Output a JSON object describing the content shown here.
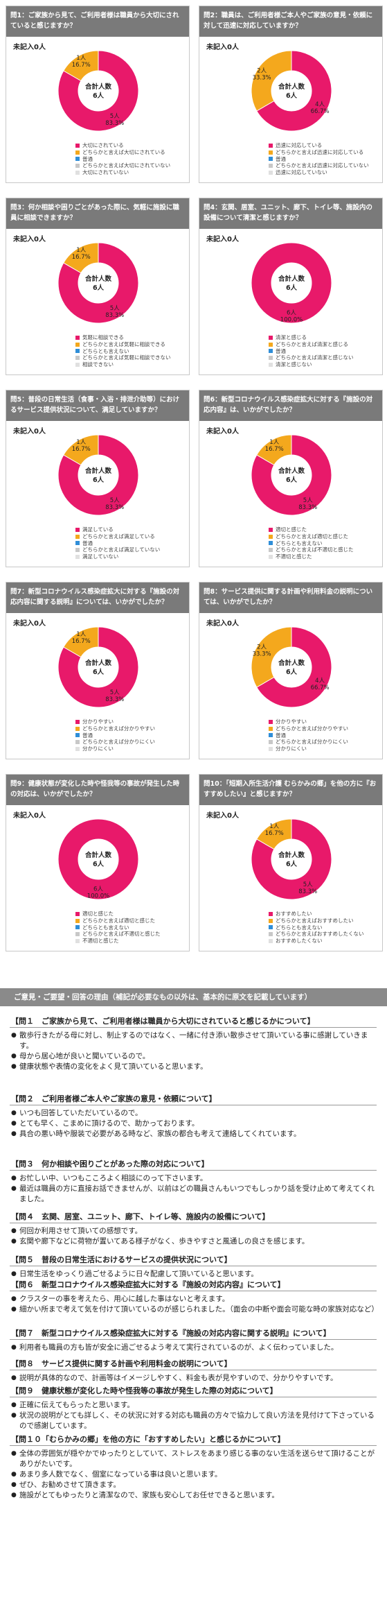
{
  "chart_data": [
    {
      "type": "pie",
      "title": "問1：ご家族から見て、ご利用者様は職員から大切にされていると感じますか？",
      "unrecorded": "未記入0人",
      "center_label": "合計人数",
      "total": "6人",
      "categories": [
        "大切にされている",
        "どちらかと言えば大切にされている",
        "普通",
        "どちらかと言えば大切にされていない",
        "大切にされていない"
      ],
      "values": [
        5,
        1,
        0,
        0,
        0
      ],
      "slice_labels": [
        [
          "5人",
          "83.3%"
        ],
        [
          "1人",
          "16.7%"
        ],
        null,
        null,
        null
      ]
    },
    {
      "type": "pie",
      "title": "問2：職員は、ご利用者様ご本人やご家族の意見・依頼に対して迅速に対応していますか？",
      "unrecorded": "未記入0人",
      "center_label": "合計人数",
      "total": "6人",
      "categories": [
        "迅速に対応している",
        "どちらかと言えば迅速に対応している",
        "普通",
        "どちらかと言えば迅速に対応していない",
        "迅速に対応していない"
      ],
      "values": [
        4,
        2,
        0,
        0,
        0
      ],
      "slice_labels": [
        [
          "4人",
          "66.7%"
        ],
        [
          "2人",
          "33.3%"
        ],
        null,
        null,
        null
      ]
    },
    {
      "type": "pie",
      "title": "問3：何か相談や困りごとがあった際に、気軽に施設に職員に相談できますか？",
      "unrecorded": "未記入0人",
      "center_label": "合計人数",
      "total": "6人",
      "categories": [
        "気軽に相談できる",
        "どちらかと言えば気軽に相談できる",
        "どちらとも言えない",
        "どちらかと言えば気軽に相談できない",
        "相談できない"
      ],
      "values": [
        5,
        1,
        0,
        0,
        0
      ],
      "slice_labels": [
        [
          "5人",
          "83.3%"
        ],
        [
          "1人",
          "16.7%"
        ],
        null,
        null,
        null
      ]
    },
    {
      "type": "pie",
      "title": "問4：玄関、居室、ユニット、廊下、トイレ等、施設内の設備について清潔と感じますか？",
      "unrecorded": "未記入0人",
      "center_label": "合計人数",
      "total": "6人",
      "categories": [
        "清潔と感じる",
        "どちらかと言えば清潔と感じる",
        "普通",
        "どちらかと言えば清潔と感じない",
        "清潔と感じない"
      ],
      "values": [
        6,
        0,
        0,
        0,
        0
      ],
      "slice_labels": [
        [
          "6人",
          "100.0%"
        ],
        null,
        null,
        null,
        null
      ]
    },
    {
      "type": "pie",
      "title": "問5：普段の日常生活（食事・入浴・排泄介助等）におけるサービス提供状況について、満足していますか？",
      "unrecorded": "未記入0人",
      "center_label": "合計人数",
      "total": "6人",
      "categories": [
        "満足している",
        "どちらかと言えば満足している",
        "普通",
        "どちらかと言えば満足していない",
        "満足していない"
      ],
      "values": [
        5,
        1,
        0,
        0,
        0
      ],
      "slice_labels": [
        [
          "5人",
          "83.3%"
        ],
        [
          "1人",
          "16.7%"
        ],
        null,
        null,
        null
      ]
    },
    {
      "type": "pie",
      "title": "問6：新型コロナウイルス感染症拡大に対する『施設の対応内容』は、いかがでしたか？",
      "unrecorded": "未記入0人",
      "center_label": "合計人数",
      "total": "6人",
      "categories": [
        "適切と感じた",
        "どちらかと言えば適切と感じた",
        "どちらとも言えない",
        "どちらかと言えば不適切と感じた",
        "不適切と感じた"
      ],
      "values": [
        5,
        1,
        0,
        0,
        0
      ],
      "slice_labels": [
        [
          "5人",
          "83.3%"
        ],
        [
          "1人",
          "16.7%"
        ],
        null,
        null,
        null
      ]
    },
    {
      "type": "pie",
      "title": "問7：新型コロナウイルス感染症拡大に対する『施設の対応内容に関する説明』については、いかがでしたか？",
      "unrecorded": "未記入0人",
      "center_label": "合計人数",
      "total": "6人",
      "categories": [
        "分かりやすい",
        "どちらかと言えば分かりやすい",
        "普通",
        "どちらかと言えば分かりにくい",
        "分かりにくい"
      ],
      "values": [
        5,
        1,
        0,
        0,
        0
      ],
      "slice_labels": [
        [
          "5人",
          "83.3%"
        ],
        [
          "1人",
          "16.7%"
        ],
        null,
        null,
        null
      ]
    },
    {
      "type": "pie",
      "title": "問8：サービス提供に関する計画や利用料金の説明については、いかがでしたか？",
      "unrecorded": "未記入0人",
      "center_label": "合計人数",
      "total": "6人",
      "categories": [
        "分かりやすい",
        "どちらかと言えば分かりやすい",
        "普通",
        "どちらかと言えば分かりにくい",
        "分かりにくい"
      ],
      "values": [
        4,
        2,
        0,
        0,
        0
      ],
      "slice_labels": [
        [
          "4人",
          "66.7%"
        ],
        [
          "2人",
          "33.3%"
        ],
        null,
        null,
        null
      ]
    },
    {
      "type": "pie",
      "title": "問9：健康状態が変化した時や怪我等の事故が発生した時の対応は、いかがでしたか？",
      "unrecorded": "未記入0人",
      "center_label": "合計人数",
      "total": "6人",
      "categories": [
        "適切と感じた",
        "どちらかと言えば適切と感じた",
        "どちらとも言えない",
        "どちらかと言えば不適切と感じた",
        "不適切と感じた"
      ],
      "values": [
        6,
        0,
        0,
        0,
        0
      ],
      "slice_labels": [
        [
          "6人",
          "100.0%"
        ],
        null,
        null,
        null,
        null
      ]
    },
    {
      "type": "pie",
      "title": "問10：「短期入所生活介護 むらかみの郷」を他の方に『おすすめしたい』と感じますか？",
      "unrecorded": "未記入0人",
      "center_label": "合計人数",
      "total": "6人",
      "categories": [
        "おすすめしたい",
        "どちらかと言えばおすすめしたい",
        "どちらとも言えない",
        "どちらかと言えばおすすめしたくない",
        "おすすめしたくない"
      ],
      "values": [
        5,
        1,
        0,
        0,
        0
      ],
      "slice_labels": [
        [
          "5人",
          "83.3%"
        ],
        [
          "1人",
          "16.7%"
        ],
        null,
        null,
        null
      ]
    }
  ],
  "colors": [
    "#e8196a",
    "#f4a81d",
    "#2f8ed8",
    "#c8c8c8",
    "#e0e0e0"
  ],
  "comments": {
    "title": "ご意見・ご要望・回答の理由（補記が必要なもの以外は、基本的に原文を記載しています）",
    "sections": [
      {
        "heading": "【問１　ご家族から見て、ご利用者様は職員から大切にされていると感じるかについて】",
        "items": [
          "散歩行きたがる母に対し、制止するのではなく、一緒に付き添い散歩させて頂いている事に感謝していきます。",
          "母から居心地が良いと聞いているので。",
          "健康状態や表情の変化をよく見て頂いていると思います。"
        ]
      },
      {
        "heading": "【問２　ご利用者様ご本人やご家族の意見・依頼について】",
        "items": [
          "いつも回答していただいているので。",
          "とても早く、こまめに頂けるので、助かっております。",
          "具合の悪い時や服装で必要がある時など、家族の都合も考えて連絡してくれています。"
        ]
      },
      {
        "heading": "【問３　何か相談や困りごとがあった際の対応について】",
        "items": [
          "お忙しい中、いつもこころよく相談にのって下さいます。",
          "最近は職員の方に直接お話できませんが、以前はどの職員さんもいつでもしっかり話を受け止めて考えてくれました。"
        ]
      },
      {
        "heading": "【問４　玄関、居室、ユニット、廊下、トイレ等、施設内の設備について】",
        "items": [
          "何回か利用させて頂いての感想です。",
          "玄関や廊下などに荷物が置いてある様子がなく、歩きやすさと風通しの良さを感じます。"
        ]
      },
      {
        "heading": "【問５　普段の日常生活におけるサービスの提供状況について】",
        "items": [
          "日常生活をゆっくり過ごせるように日々配慮して頂いていると思います。"
        ]
      },
      {
        "heading": "【問６　新型コロナウイルス感染症拡大に対する『施設の対応内容』について】",
        "items": [
          "クラスターの事を考えたら、用心に越した事はないと考えます。",
          "細かい所まで考えて気を付けて頂いているのが感じられました。（面会の中断や面会可能な時の家族対応など）"
        ]
      },
      {
        "heading": "【問７　新型コロナウイルス感染症拡大に対する『施設の対応内容に関する説明』について】",
        "items": [
          "利用者も職員の方も皆が安全に過ごせるよう考えて実行されているのが、よく伝わっていました。"
        ]
      },
      {
        "heading": "【問８　サービス提供に関する計画や利用料金の説明について】",
        "items": [
          "説明が具体的なので、計画等はイメージしやすく、料金も表が見やすいので、分かりやすいです。"
        ]
      },
      {
        "heading": "【問９　健康状態が変化した時や怪我等の事故が発生した際の対応について】",
        "items": [
          "正確に伝えてもらったと思います。",
          "状況の説明がとても詳しく、その状況に対する対応も職員の方々で協力して良い方法を見付けて下さっているので感謝しています。"
        ]
      },
      {
        "heading": "【問１０「むらかみの郷」を他の方に「おすすめしたい」と感じるかについて】",
        "items": [
          "全体の雰囲気が穏やかでゆったりとしていて、ストレスをあまり感じる事のない生活を送らせて頂けることがありがたいです。",
          "あまり多人数でなく、個室になっている事は良いと思います。",
          "ぜひ、お勧めさせて頂きます。",
          "施設がとてもゆったりと清潔なので、家族も安心してお任せできると思います。"
        ]
      }
    ]
  }
}
